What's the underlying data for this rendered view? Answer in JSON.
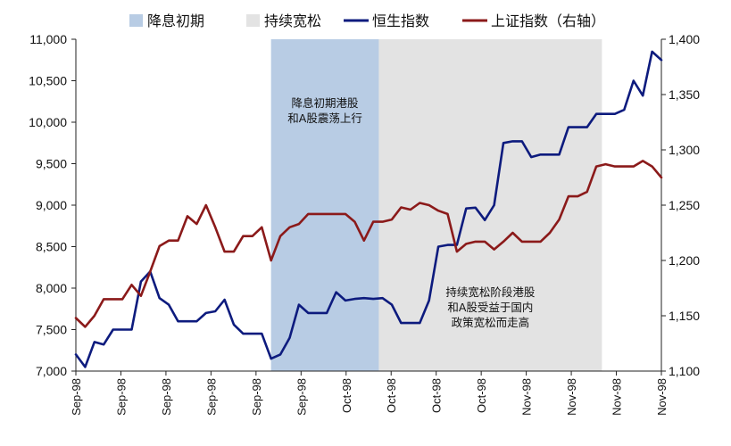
{
  "chart_data": {
    "type": "line",
    "title": "",
    "xlabel": "",
    "ylabel": "",
    "y2label": "",
    "ylim": [
      7000,
      11000
    ],
    "yticks": [
      "7,000",
      "7,500",
      "8,000",
      "8,500",
      "9,000",
      "9,500",
      "10,000",
      "10,500",
      "11,000"
    ],
    "y2lim": [
      1100,
      1400
    ],
    "y2ticks": [
      "1,100",
      "1,150",
      "1,200",
      "1,250",
      "1,300",
      "1,350",
      "1,400"
    ],
    "x_tick_labels": [
      "Sep-98",
      "Sep-98",
      "Sep-98",
      "Sep-98",
      "Sep-98",
      "Sep-98",
      "Oct-98",
      "Oct-98",
      "Oct-98",
      "Oct-98",
      "Nov-98",
      "Nov-98",
      "Nov-98",
      "Nov-98"
    ],
    "x": [
      0,
      1,
      2,
      3,
      4,
      5,
      6,
      7,
      8,
      9,
      10,
      11,
      12,
      13,
      14,
      15,
      16,
      17,
      18,
      19,
      20,
      21,
      22,
      23,
      24,
      25,
      26,
      27,
      28,
      29,
      30,
      31,
      32,
      33,
      34,
      35,
      36,
      37,
      38,
      39,
      40,
      41,
      42,
      43,
      44,
      45,
      46,
      47,
      48,
      49,
      50,
      51,
      52,
      53,
      54,
      55,
      56,
      57,
      58,
      59,
      60,
      61,
      62,
      63
    ],
    "shaded_regions": [
      {
        "label": "降息初期",
        "x_start": 21,
        "x_end": 32.6,
        "color": "#b8cce4"
      },
      {
        "label": "持续宽松",
        "x_start": 32.6,
        "x_end": 56.6,
        "color": "#e3e3e3"
      }
    ],
    "series": [
      {
        "name": "恒生指数",
        "axis": "left",
        "color": "#0d1b7e",
        "values": [
          7200,
          7050,
          7350,
          7320,
          7500,
          7500,
          7500,
          8080,
          8200,
          7880,
          7800,
          7600,
          7600,
          7600,
          7700,
          7720,
          7860,
          7560,
          7450,
          7450,
          7450,
          7150,
          7200,
          7400,
          7800,
          7700,
          7700,
          7700,
          7950,
          7850,
          7870,
          7880,
          7870,
          7880,
          7800,
          7580,
          7580,
          7580,
          7850,
          8500,
          8520,
          8520,
          8960,
          8970,
          8820,
          9000,
          9750,
          9770,
          9770,
          9580,
          9610,
          9610,
          9610,
          9940,
          9940,
          9940,
          10100,
          10100,
          10100,
          10150,
          10500,
          10320,
          10850,
          10750
        ]
      },
      {
        "name": "上证指数（右轴）",
        "axis": "right",
        "color": "#8b1a1a",
        "values": [
          1148,
          1140,
          1150,
          1165,
          1165,
          1165,
          1178,
          1168,
          1190,
          1213,
          1218,
          1218,
          1240,
          1233,
          1250,
          1230,
          1208,
          1208,
          1222,
          1222,
          1230,
          1200,
          1222,
          1230,
          1233,
          1242,
          1242,
          1242,
          1242,
          1242,
          1235,
          1218,
          1235,
          1235,
          1237,
          1248,
          1246,
          1252,
          1250,
          1245,
          1242,
          1208,
          1215,
          1217,
          1217,
          1210,
          1217,
          1225,
          1217,
          1217,
          1217,
          1225,
          1237,
          1258,
          1258,
          1262,
          1285,
          1287,
          1285,
          1285,
          1285,
          1290,
          1285,
          1275
        ]
      }
    ],
    "legend": {
      "position": "top",
      "entries": [
        {
          "label": "降息初期",
          "kind": "box",
          "color": "#b8cce4"
        },
        {
          "label": "持续宽松",
          "kind": "box",
          "color": "#e3e3e3"
        },
        {
          "label": "恒生指数",
          "kind": "line",
          "color": "#0d1b7e"
        },
        {
          "label": "上证指数（右轴）",
          "kind": "line",
          "color": "#8b1a1a"
        }
      ]
    },
    "annotations": [
      {
        "lines": [
          "降息初期港股",
          "和A股震荡上行"
        ],
        "region": "降息初期"
      },
      {
        "lines": [
          "持续宽松阶段港股",
          "和A股受益于国内",
          "政策宽松而走高"
        ],
        "region": "持续宽松"
      }
    ],
    "grid": false
  }
}
